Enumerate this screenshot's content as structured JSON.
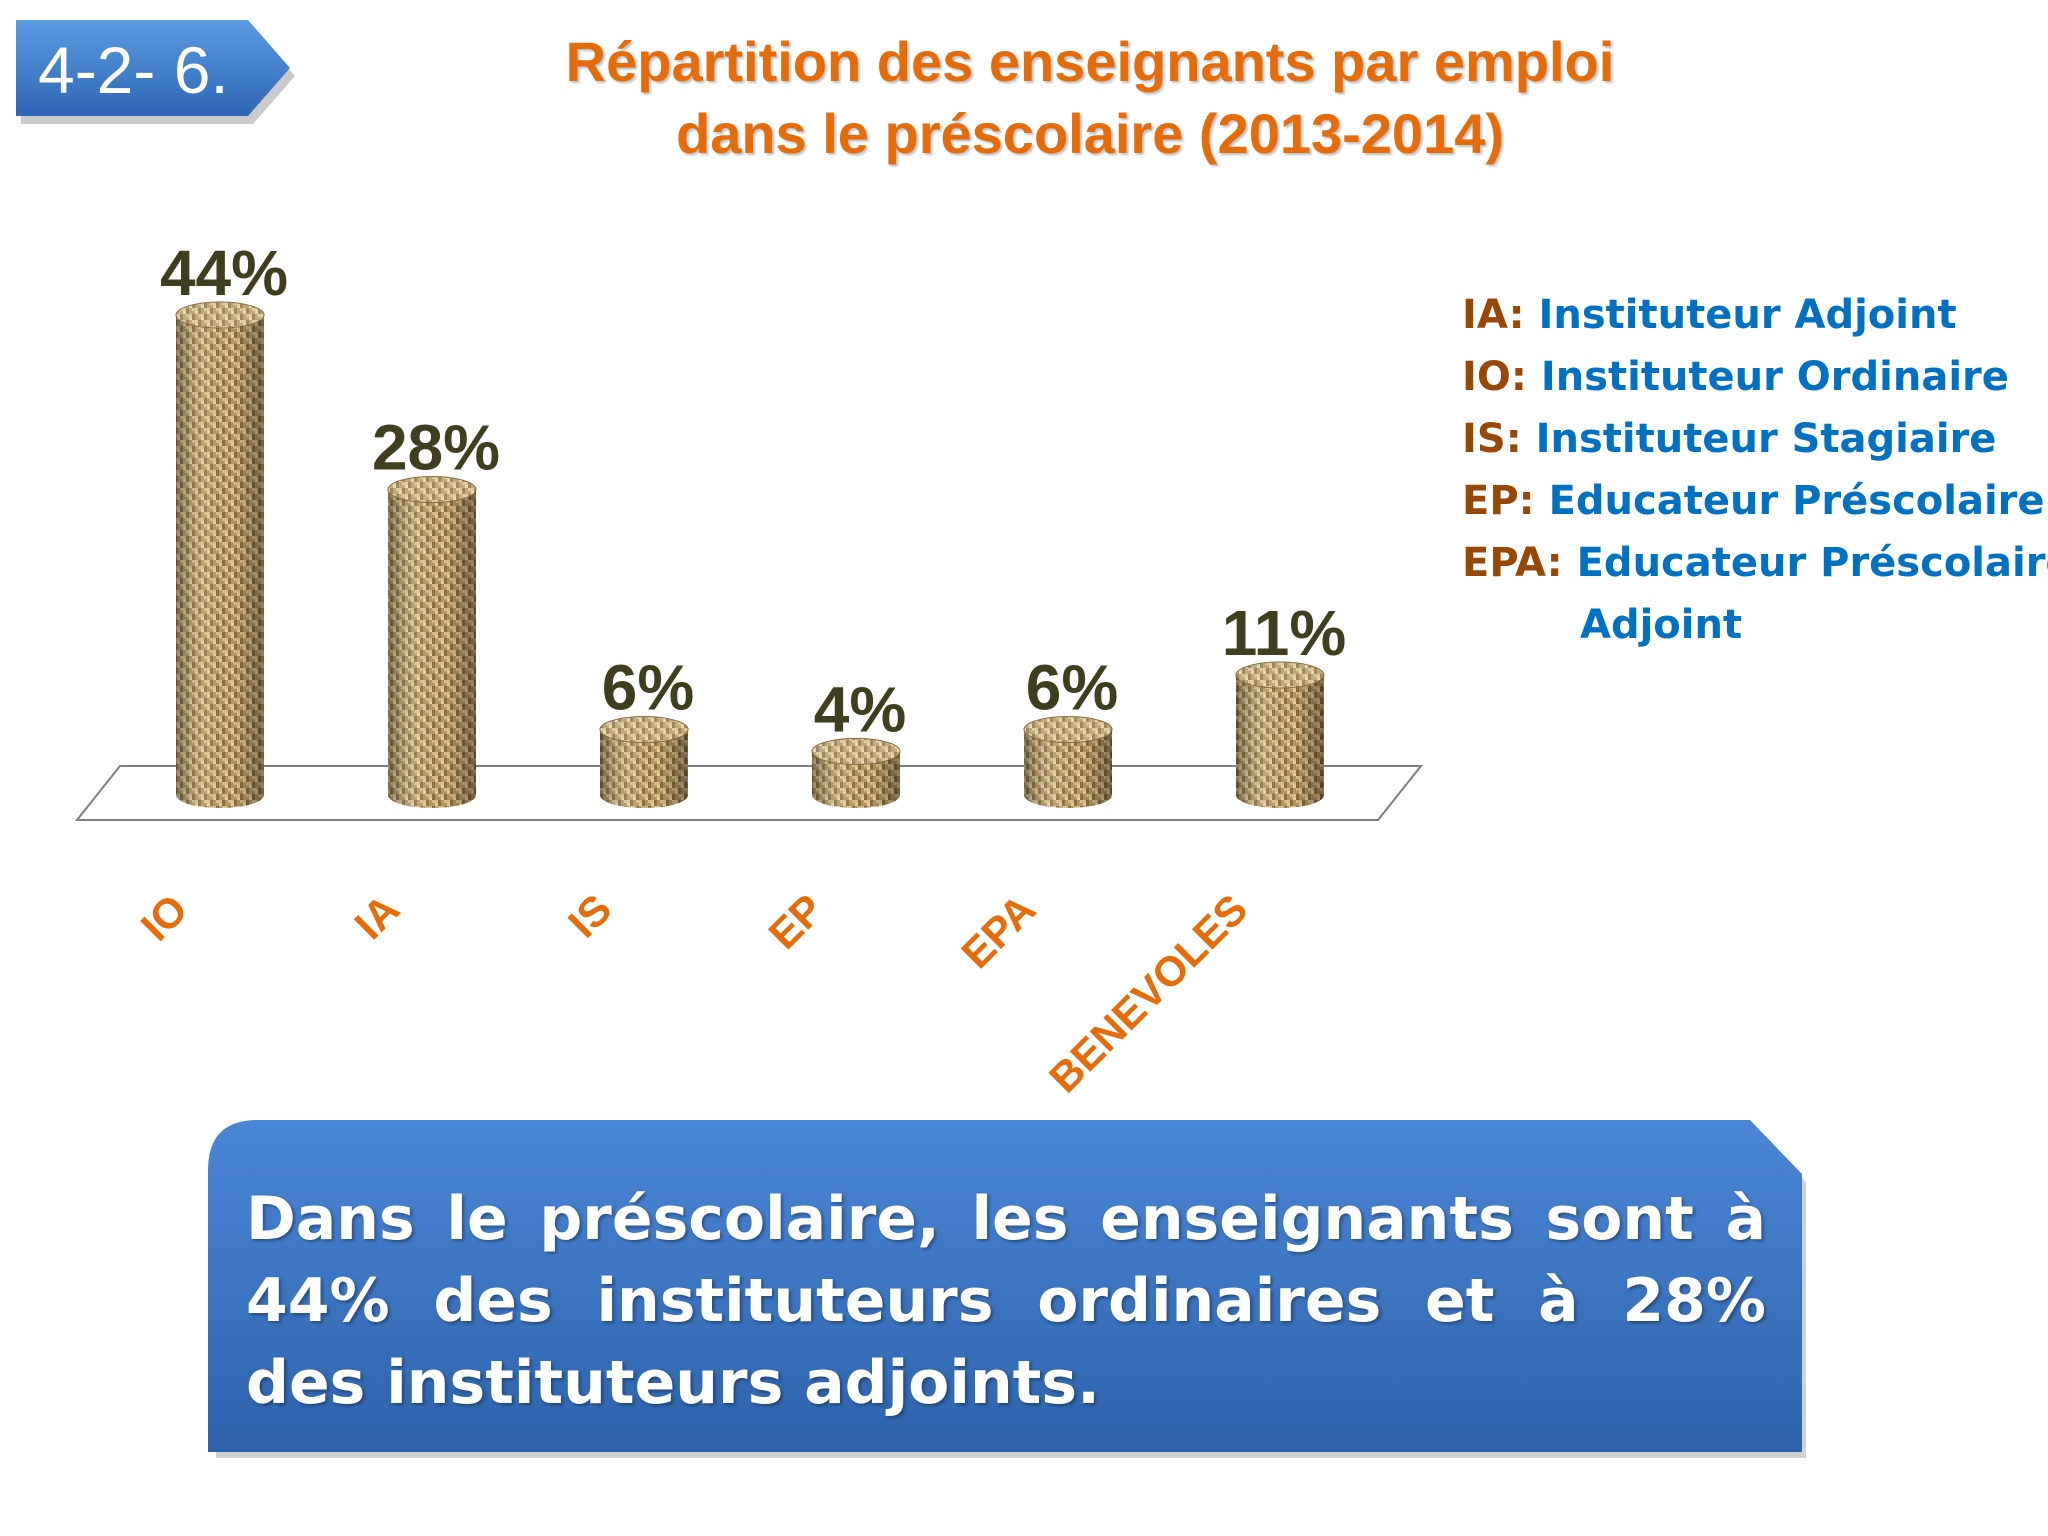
{
  "slide_number": "4-2- 6.",
  "title_line1": "Répartition des enseignants  par emploi",
  "title_line2": "dans le préscolaire (2013-2014)",
  "legend": [
    {
      "abbr": "IA:",
      "full": "Instituteur Adjoint"
    },
    {
      "abbr": "IO:",
      "full": "Instituteur Ordinaire"
    },
    {
      "abbr": "IS:",
      "full": "Instituteur Stagiaire"
    },
    {
      "abbr": "EP:",
      "full": "Educateur Préscolaire"
    },
    {
      "abbr": "EPA:",
      "full": "Educateur Préscolaire",
      "cont": "Adjoint"
    }
  ],
  "callout_text": "Dans le préscolaire, les enseignants sont à 44%  des instituteurs  ordinaires et à 28% des instituteurs adjoints.",
  "colors": {
    "title": "#E46C0A",
    "category_label": "#E46C0A",
    "value_label": "#3F3F1F",
    "legend_abbr": "#974806",
    "legend_full": "#0070C0",
    "callout_top": "#4A86D6",
    "callout_bottom": "#2E63AB",
    "bar_texture": "burlap-weave"
  },
  "chart_data": {
    "type": "bar",
    "categories": [
      "IO",
      "IA",
      "IS",
      "EP",
      "EPA",
      "BENEVOLES"
    ],
    "values": [
      44,
      28,
      6,
      4,
      6,
      11
    ],
    "value_labels": [
      "44%",
      "28%",
      "6%",
      "4%",
      "6%",
      "11%"
    ],
    "unit": "%",
    "ylim": [
      0,
      44
    ],
    "grid": false,
    "legend_position": "right"
  }
}
